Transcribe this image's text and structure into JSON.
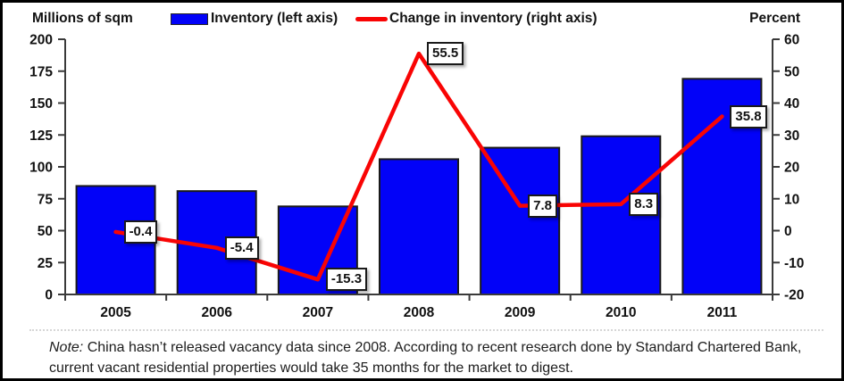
{
  "header": {
    "left_axis_title": "Millions of sqm",
    "right_axis_title": "Percent",
    "legend": [
      {
        "label": "Inventory (left axis)",
        "marker": "bar-swatch",
        "color": "#0202f8"
      },
      {
        "label": "Change in inventory (right axis)",
        "marker": "line-swatch",
        "color": "#f90404"
      }
    ]
  },
  "chart_data": {
    "type": "bar",
    "combo": "bar+line",
    "categories": [
      "2005",
      "2006",
      "2007",
      "2008",
      "2009",
      "2010",
      "2011"
    ],
    "series": [
      {
        "name": "Inventory (left axis)",
        "type": "bar",
        "axis": "left",
        "color": "#0202f8",
        "values": [
          85,
          81,
          69,
          106,
          115,
          124,
          169
        ]
      },
      {
        "name": "Change in inventory (right axis)",
        "type": "line",
        "axis": "right",
        "color": "#f90404",
        "values": [
          -0.4,
          -5.4,
          -15.3,
          55.5,
          7.8,
          8.3,
          35.8
        ],
        "point_labels": [
          "-0.4",
          "-5.4",
          "-15.3",
          "55.5",
          "7.8",
          "8.3",
          "35.8"
        ]
      }
    ],
    "left_axis": {
      "title": "Millions of sqm",
      "min": 0,
      "max": 200,
      "ticks": [
        0,
        25,
        50,
        75,
        100,
        125,
        150,
        175,
        200
      ]
    },
    "right_axis": {
      "title": "Percent",
      "min": -20,
      "max": 60,
      "ticks": [
        -20,
        -10,
        0,
        10,
        20,
        30,
        40,
        50,
        60
      ]
    },
    "grid": false,
    "legend_position": "top"
  },
  "note": {
    "prefix": "Note:",
    "text": "China hasn’t released vacancy data since 2008. According to recent research done by Standard Chartered Bank, current vacant residential properties would take 35 months for the market to digest."
  }
}
